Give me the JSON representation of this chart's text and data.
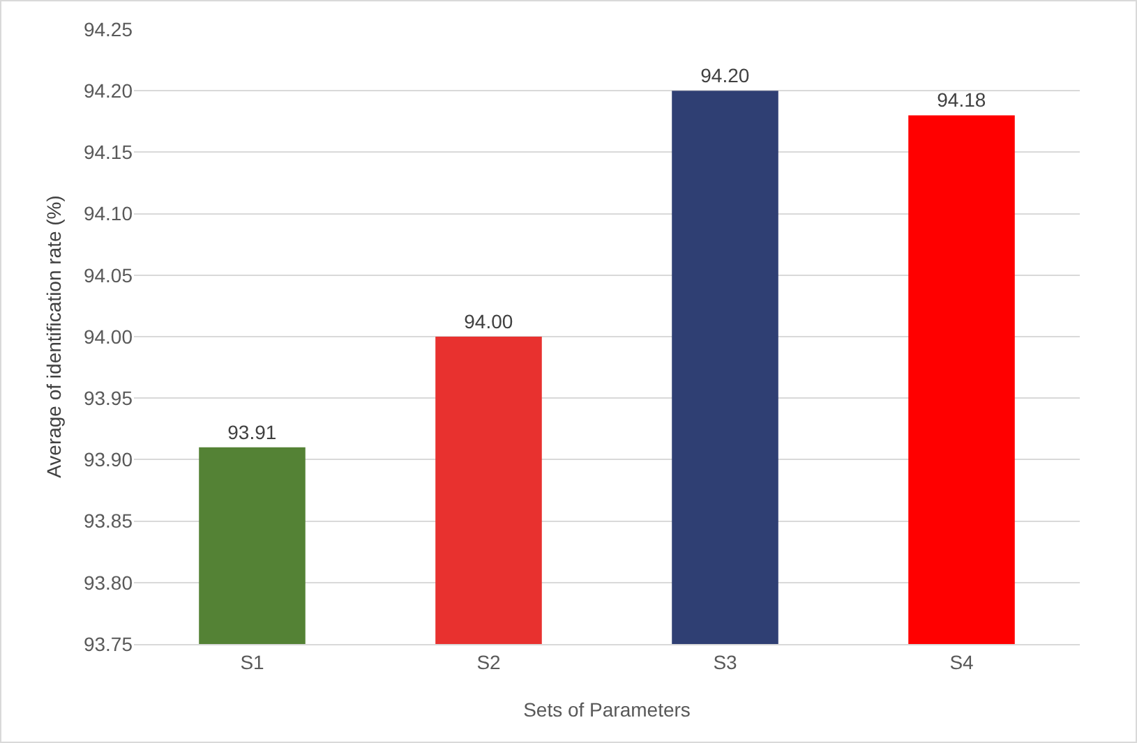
{
  "chart_data": {
    "type": "bar",
    "xlabel": "Sets of Parameters",
    "ylabel": "Average of identification rate (%)",
    "categories": [
      "S1",
      "S2",
      "S3",
      "S4"
    ],
    "values": [
      93.91,
      94.0,
      94.2,
      94.18
    ],
    "value_labels": [
      "93.91",
      "94.00",
      "94.20",
      "94.18"
    ],
    "colors": [
      "#548235",
      "#e8312f",
      "#2f3f73",
      "#ff0000"
    ],
    "ylim": [
      93.75,
      94.25
    ],
    "yticks": [
      {
        "value": 93.75,
        "label": "93.75"
      },
      {
        "value": 93.8,
        "label": "93.80"
      },
      {
        "value": 93.85,
        "label": "93.85"
      },
      {
        "value": 93.9,
        "label": "93.90"
      },
      {
        "value": 93.95,
        "label": "93.95"
      },
      {
        "value": 94.0,
        "label": "94.00"
      },
      {
        "value": 94.05,
        "label": "94.05"
      },
      {
        "value": 94.1,
        "label": "94.10"
      },
      {
        "value": 94.15,
        "label": "94.15"
      },
      {
        "value": 94.2,
        "label": "94.20"
      },
      {
        "value": 94.25,
        "label": "94.25"
      }
    ],
    "grid": "y"
  }
}
